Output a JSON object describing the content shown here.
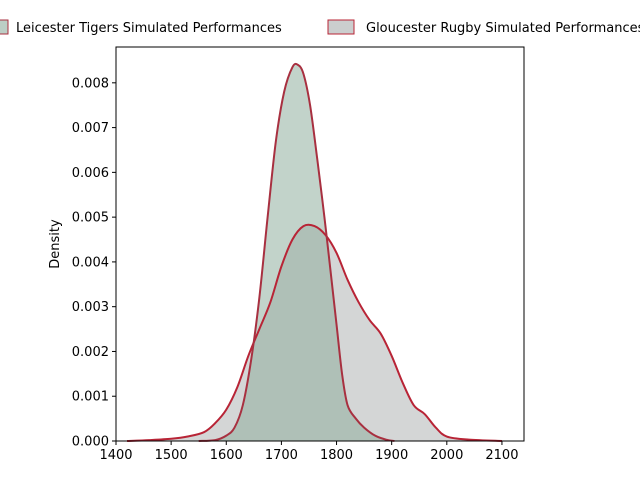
{
  "chart_data": {
    "type": "area",
    "title": "",
    "xlabel": "",
    "ylabel": "Density",
    "xlim": [
      1400,
      2140
    ],
    "ylim": [
      0,
      0.0088
    ],
    "xticks": [
      "1400",
      "1500",
      "1600",
      "1700",
      "1800",
      "1900",
      "2000",
      "2100"
    ],
    "yticks": [
      "0.000",
      "0.001",
      "0.002",
      "0.003",
      "0.004",
      "0.005",
      "0.006",
      "0.007",
      "0.008"
    ],
    "grid": false,
    "legend_position": "top-center",
    "legend": [
      "Leicester Tigers Simulated Performances",
      "Gloucester Rugby Simulated Performances"
    ],
    "series": [
      {
        "name": "Leicester Tigers Simulated Performances",
        "fill_color": "#8fae9f",
        "fill_opacity": 0.55,
        "line_color": "#a83040",
        "points": [
          [
            1550,
            0.0
          ],
          [
            1580,
            2e-05
          ],
          [
            1600,
            0.00012
          ],
          [
            1615,
            0.0003
          ],
          [
            1630,
            0.0008
          ],
          [
            1645,
            0.0018
          ],
          [
            1660,
            0.0032
          ],
          [
            1675,
            0.005
          ],
          [
            1690,
            0.0067
          ],
          [
            1705,
            0.0078
          ],
          [
            1720,
            0.00835
          ],
          [
            1730,
            0.0084
          ],
          [
            1740,
            0.0082
          ],
          [
            1752,
            0.0075
          ],
          [
            1765,
            0.0063
          ],
          [
            1778,
            0.005
          ],
          [
            1790,
            0.0037
          ],
          [
            1800,
            0.0026
          ],
          [
            1810,
            0.0015
          ],
          [
            1820,
            0.0008
          ],
          [
            1835,
            0.0005
          ],
          [
            1850,
            0.0003
          ],
          [
            1870,
            0.00012
          ],
          [
            1890,
            3e-05
          ],
          [
            1905,
            0.0
          ]
        ]
      },
      {
        "name": "Gloucester Rugby Simulated Performances",
        "fill_color": "#a9aeae",
        "fill_opacity": 0.5,
        "line_color": "#b82436",
        "points": [
          [
            1420,
            0.0
          ],
          [
            1460,
            2e-05
          ],
          [
            1500,
            5e-05
          ],
          [
            1530,
            0.0001
          ],
          [
            1560,
            0.0002
          ],
          [
            1580,
            0.0004
          ],
          [
            1600,
            0.0007
          ],
          [
            1620,
            0.0012
          ],
          [
            1640,
            0.0019
          ],
          [
            1660,
            0.0025
          ],
          [
            1680,
            0.0031
          ],
          [
            1700,
            0.0039
          ],
          [
            1720,
            0.0045
          ],
          [
            1740,
            0.0048
          ],
          [
            1760,
            0.0048
          ],
          [
            1780,
            0.0046
          ],
          [
            1800,
            0.0042
          ],
          [
            1820,
            0.0036
          ],
          [
            1840,
            0.0031
          ],
          [
            1860,
            0.0027
          ],
          [
            1880,
            0.0024
          ],
          [
            1900,
            0.0019
          ],
          [
            1920,
            0.0013
          ],
          [
            1940,
            0.0008
          ],
          [
            1960,
            0.0006
          ],
          [
            1980,
            0.0003
          ],
          [
            2000,
            0.0001
          ],
          [
            2040,
            3e-05
          ],
          [
            2100,
            0.0
          ]
        ]
      }
    ]
  }
}
